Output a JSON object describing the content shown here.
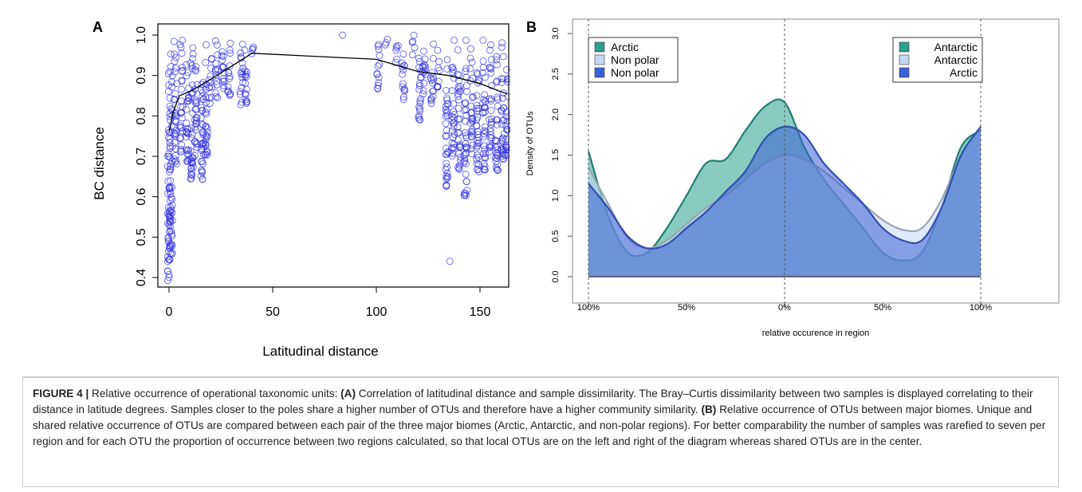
{
  "panel_labels": {
    "a": "A",
    "b": "B"
  },
  "chart_data": [
    {
      "type": "scatter",
      "xlabel": "Latitudinal distance",
      "ylabel": "BC distance",
      "xlim": [
        0,
        165
      ],
      "ylim": [
        0.39,
        1.0
      ],
      "x_ticks": [
        "0",
        "50",
        "100",
        "150"
      ],
      "y_ticks": [
        "0.4",
        "0.5",
        "0.6",
        "0.7",
        "0.8",
        "0.9",
        "1.0"
      ],
      "point_color": "#3030e0",
      "clusters": [
        {
          "x": 0,
          "y_min": 0.39,
          "y_max": 0.99
        },
        {
          "x": 1,
          "y_min": 0.45,
          "y_max": 0.99
        },
        {
          "x": 3,
          "y_min": 0.68,
          "y_max": 1.0
        },
        {
          "x": 6,
          "y_min": 0.7,
          "y_max": 1.0
        },
        {
          "x": 9,
          "y_min": 0.68,
          "y_max": 0.99
        },
        {
          "x": 11,
          "y_min": 0.64,
          "y_max": 1.0
        },
        {
          "x": 13,
          "y_min": 0.7,
          "y_max": 0.98
        },
        {
          "x": 16,
          "y_min": 0.63,
          "y_max": 1.0
        },
        {
          "x": 18,
          "y_min": 0.7,
          "y_max": 0.99
        },
        {
          "x": 20,
          "y_min": 0.83,
          "y_max": 0.96
        },
        {
          "x": 23,
          "y_min": 0.84,
          "y_max": 0.99
        },
        {
          "x": 26,
          "y_min": 0.85,
          "y_max": 0.99
        },
        {
          "x": 29,
          "y_min": 0.85,
          "y_max": 1.0
        },
        {
          "x": 35,
          "y_min": 0.82,
          "y_max": 1.0
        },
        {
          "x": 37,
          "y_min": 0.83,
          "y_max": 0.99
        },
        {
          "x": 40,
          "y_min": 0.95,
          "y_max": 0.99
        },
        {
          "x": 84,
          "y_min": 1.0,
          "y_max": 1.0
        },
        {
          "x": 101,
          "y_min": 0.86,
          "y_max": 1.0
        },
        {
          "x": 105,
          "y_min": 0.97,
          "y_max": 1.0
        },
        {
          "x": 110,
          "y_min": 0.93,
          "y_max": 1.0
        },
        {
          "x": 113,
          "y_min": 0.84,
          "y_max": 0.99
        },
        {
          "x": 118,
          "y_min": 0.95,
          "y_max": 1.0
        },
        {
          "x": 121,
          "y_min": 0.79,
          "y_max": 1.0
        },
        {
          "x": 123,
          "y_min": 0.85,
          "y_max": 1.0
        },
        {
          "x": 127,
          "y_min": 0.83,
          "y_max": 1.0
        },
        {
          "x": 130,
          "y_min": 0.87,
          "y_max": 0.97
        },
        {
          "x": 134,
          "y_min": 0.62,
          "y_max": 0.99
        },
        {
          "x": 135,
          "y_min": 0.44,
          "y_max": 0.44
        },
        {
          "x": 137,
          "y_min": 0.7,
          "y_max": 0.99
        },
        {
          "x": 140,
          "y_min": 0.66,
          "y_max": 0.99
        },
        {
          "x": 143,
          "y_min": 0.6,
          "y_max": 0.99
        },
        {
          "x": 146,
          "y_min": 0.7,
          "y_max": 0.98
        },
        {
          "x": 149,
          "y_min": 0.66,
          "y_max": 0.99
        },
        {
          "x": 152,
          "y_min": 0.66,
          "y_max": 1.0
        },
        {
          "x": 155,
          "y_min": 0.7,
          "y_max": 0.99
        },
        {
          "x": 158,
          "y_min": 0.66,
          "y_max": 0.97
        },
        {
          "x": 161,
          "y_min": 0.67,
          "y_max": 0.99
        },
        {
          "x": 163,
          "y_min": 0.7,
          "y_max": 0.93
        }
      ],
      "trend_line": {
        "x": [
          0,
          2,
          5,
          10,
          20,
          40,
          80,
          100,
          120,
          135,
          150,
          160,
          163
        ],
        "y": [
          0.76,
          0.81,
          0.85,
          0.86,
          0.89,
          0.955,
          0.945,
          0.94,
          0.91,
          0.9,
          0.88,
          0.86,
          0.855
        ]
      }
    },
    {
      "type": "area",
      "xlabel": "relative occurence in region",
      "ylabel": "Density of OTUs",
      "ylim": [
        0,
        3.0
      ],
      "x_ticks": [
        "100%",
        "50%",
        "0%",
        "50%",
        "100%"
      ],
      "y_ticks": [
        "0.0",
        "0.5",
        "1.0",
        "1.5",
        "2.0",
        "2.5",
        "3.0"
      ],
      "legend_left": {
        "placement": "top-left",
        "entries": [
          {
            "label": "Arctic",
            "color": "#2aa08c"
          },
          {
            "label": "Non polar",
            "color": "#c6d8f4"
          },
          {
            "label": "Non polar",
            "color": "#3b5fd6"
          }
        ]
      },
      "legend_right": {
        "placement": "top-right",
        "entries": [
          {
            "label": "Antarctic",
            "color": "#2aa08c"
          },
          {
            "label": "Antarctic",
            "color": "#c6d8f4"
          },
          {
            "label": "Arctic",
            "color": "#3b5fd6"
          }
        ]
      },
      "x": [
        -1.0,
        -0.9,
        -0.8,
        -0.7,
        -0.6,
        -0.5,
        -0.4,
        -0.3,
        -0.2,
        -0.1,
        0.0,
        0.1,
        0.2,
        0.3,
        0.4,
        0.5,
        0.6,
        0.7,
        0.8,
        0.9,
        1.0
      ],
      "series": [
        {
          "fill": "#2aa08c",
          "stroke": "#1f7f74",
          "values": [
            1.55,
            0.75,
            0.3,
            0.3,
            0.6,
            1.0,
            1.4,
            1.45,
            1.8,
            2.1,
            2.15,
            1.6,
            1.2,
            0.9,
            0.6,
            0.3,
            0.2,
            0.3,
            0.85,
            1.6,
            1.8
          ]
        },
        {
          "fill": "#c6d8f4",
          "stroke": "#9aa4b4",
          "values": [
            1.35,
            0.9,
            0.48,
            0.35,
            0.45,
            0.65,
            0.85,
            1.0,
            1.2,
            1.4,
            1.5,
            1.45,
            1.3,
            1.1,
            0.9,
            0.7,
            0.58,
            0.6,
            0.95,
            1.5,
            1.85
          ]
        },
        {
          "fill": "#3b5fd6",
          "stroke": "#2f4faf",
          "values": [
            1.15,
            0.85,
            0.5,
            0.35,
            0.4,
            0.6,
            0.8,
            1.05,
            1.3,
            1.7,
            1.85,
            1.75,
            1.4,
            1.15,
            0.9,
            0.6,
            0.45,
            0.45,
            0.85,
            1.5,
            1.85
          ]
        }
      ]
    }
  ],
  "caption": {
    "label": "FIGURE 4 |",
    "intro": " Relative occurrence of operational taxonomic units: ",
    "a_label": "(A)",
    "a_text": " Correlation of latitudinal distance and sample dissimilarity. The Bray–Curtis dissimilarity between two samples is displayed correlating to their distance in latitude degrees. Samples closer to the poles share a higher number of OTUs and therefore have a higher community similarity. ",
    "b_label": "(B)",
    "b_text": " Relative occurrence of OTUs between major biomes. Unique and shared relative occurrence of OTUs are compared between each pair of the three major biomes (Arctic, Antarctic, and non-polar regions). For better comparability the number of samples was rarefied to seven per region and for each OTU the proportion of occurrence between two regions calculated, so that local OTUs are on the left and right of the diagram whereas shared OTUs are in the center."
  }
}
